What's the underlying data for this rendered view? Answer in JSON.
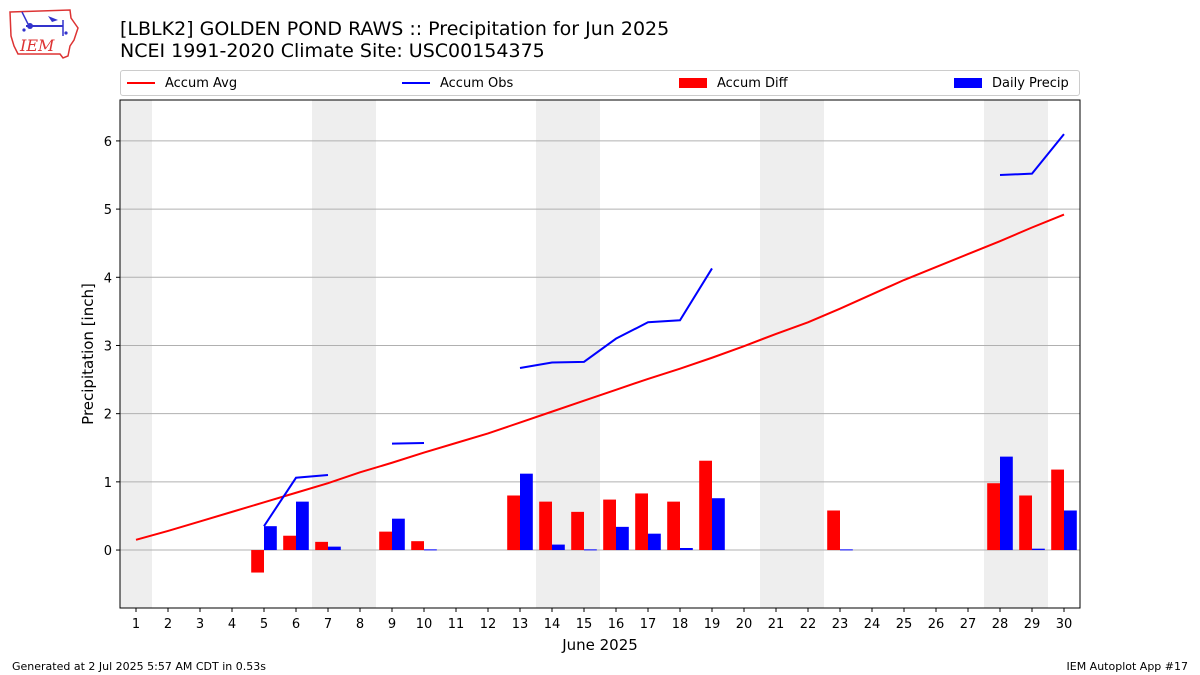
{
  "header": {
    "title_line1": "[LBLK2] GOLDEN POND RAWS :: Precipitation for Jun 2025",
    "title_line2": "NCEI 1991-2020 Climate Site: USC00154375"
  },
  "logo": {
    "text": "IEM"
  },
  "footer": {
    "left": "Generated at 2 Jul 2025 5:57 AM CDT in 0.53s",
    "right": "IEM Autoplot App #17"
  },
  "colors": {
    "avg": "#ff0000",
    "obs": "#0000ff",
    "diff": "#ff0000",
    "daily": "#0000ff",
    "weekend_band": "#eeeeee",
    "grid": "#b0b0b0"
  },
  "chart_data": {
    "type": "bar",
    "title": "[LBLK2] GOLDEN POND RAWS :: Precipitation for Jun 2025",
    "xlabel": "June 2025",
    "ylabel": "Precipitation [inch]",
    "xlim": [
      0.5,
      30.5
    ],
    "ylim": [
      -0.85,
      6.6
    ],
    "yticks": [
      0,
      1,
      2,
      3,
      4,
      5,
      6
    ],
    "xticks": [
      1,
      2,
      3,
      4,
      5,
      6,
      7,
      8,
      9,
      10,
      11,
      12,
      13,
      14,
      15,
      16,
      17,
      18,
      19,
      20,
      21,
      22,
      23,
      24,
      25,
      26,
      27,
      28,
      29,
      30
    ],
    "grid": "horizontal",
    "legend_placement": "top",
    "shaded_days": [
      [
        0.5,
        1.5
      ],
      [
        6.5,
        8.5
      ],
      [
        13.5,
        15.5
      ],
      [
        20.5,
        22.5
      ],
      [
        27.5,
        29.5
      ]
    ],
    "series": [
      {
        "name": "Accum Avg",
        "kind": "line",
        "x": [
          1,
          2,
          3,
          4,
          5,
          6,
          7,
          8,
          9,
          10,
          11,
          12,
          13,
          14,
          15,
          16,
          17,
          18,
          19,
          20,
          21,
          22,
          23,
          24,
          25,
          26,
          27,
          28,
          29,
          30
        ],
        "values": [
          0.15,
          0.28,
          0.42,
          0.56,
          0.7,
          0.84,
          0.98,
          1.14,
          1.28,
          1.43,
          1.57,
          1.71,
          1.87,
          2.03,
          2.19,
          2.35,
          2.51,
          2.66,
          2.82,
          2.99,
          3.17,
          3.34,
          3.54,
          3.75,
          3.96,
          4.15,
          4.34,
          4.53,
          4.73,
          4.92
        ]
      },
      {
        "name": "Accum Obs",
        "kind": "line",
        "x": [
          1,
          2,
          3,
          4,
          5,
          6,
          7,
          8,
          9,
          10,
          11,
          12,
          13,
          14,
          15,
          16,
          17,
          18,
          19,
          20,
          21,
          22,
          23,
          24,
          25,
          26,
          27,
          28,
          29,
          30
        ],
        "values": [
          null,
          null,
          null,
          null,
          0.35,
          1.06,
          1.1,
          null,
          1.56,
          1.57,
          null,
          null,
          2.67,
          2.75,
          2.76,
          3.1,
          3.34,
          3.37,
          4.13,
          null,
          null,
          null,
          null,
          null,
          null,
          null,
          null,
          5.5,
          5.52,
          6.1
        ]
      },
      {
        "name": "Accum Diff",
        "kind": "bar",
        "x": [
          5,
          6,
          7,
          9,
          10,
          13,
          14,
          15,
          16,
          17,
          18,
          19,
          23,
          28,
          29,
          30
        ],
        "values": [
          -0.33,
          0.21,
          0.12,
          0.27,
          0.13,
          0.8,
          0.71,
          0.56,
          0.74,
          0.83,
          0.71,
          1.31,
          0.58,
          0.98,
          0.8,
          1.18
        ]
      },
      {
        "name": "Daily Precip",
        "kind": "bar",
        "x": [
          5,
          6,
          7,
          9,
          10,
          13,
          14,
          15,
          16,
          17,
          18,
          19,
          23,
          28,
          29,
          30
        ],
        "values": [
          0.35,
          0.71,
          0.05,
          0.46,
          0.01,
          1.12,
          0.08,
          0.01,
          0.34,
          0.24,
          0.03,
          0.76,
          0.01,
          1.37,
          0.02,
          0.58
        ]
      }
    ]
  }
}
